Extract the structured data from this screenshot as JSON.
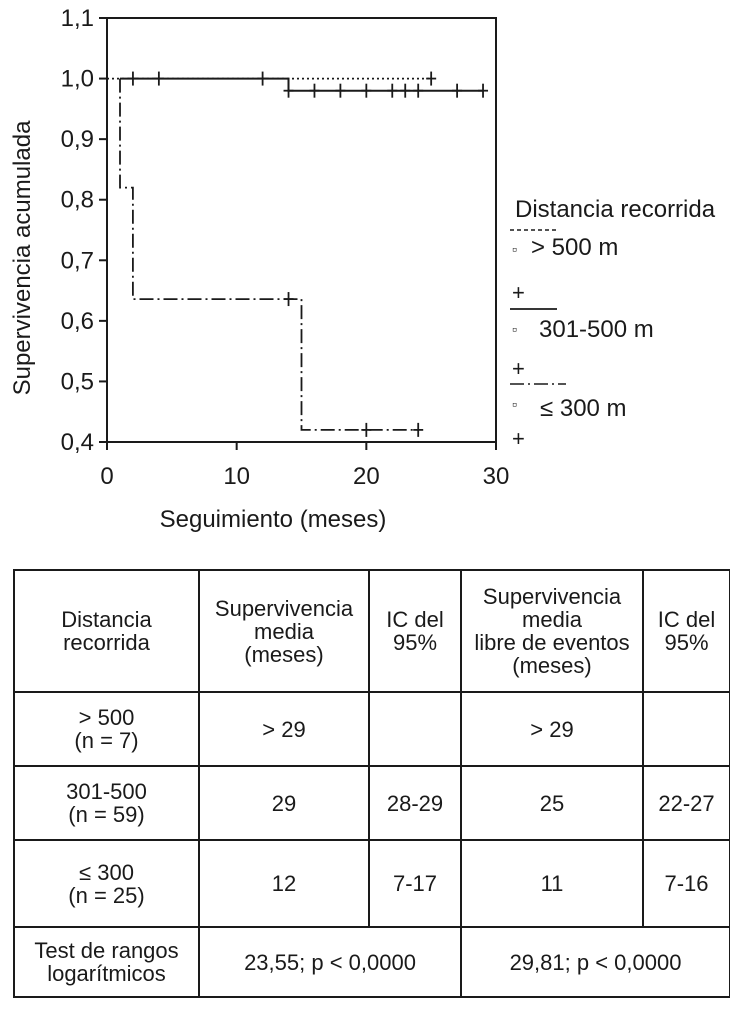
{
  "chart_data": {
    "type": "line",
    "subtype": "kaplan-meier step curve",
    "xlabel": "Seguimiento (meses)",
    "ylabel": "Supervivencia acumulada",
    "xlim": [
      0,
      30
    ],
    "ylim": [
      0.4,
      1.1
    ],
    "x_ticks": [
      "0",
      "10",
      "20",
      "30"
    ],
    "y_ticks": [
      "0,4",
      "0,5",
      "0,6",
      "0,7",
      "0,8",
      "0,9",
      "1,0",
      "1,1"
    ],
    "legend_title": "Distancia recorrida",
    "legend_position": "right",
    "series": [
      {
        "name": "> 500 m",
        "style": "dotted",
        "steps": [
          [
            0,
            1.0
          ],
          [
            25,
            1.0
          ]
        ],
        "censored": [
          [
            25,
            1.0
          ]
        ]
      },
      {
        "name": "301-500 m",
        "style": "solid",
        "steps": [
          [
            1,
            1.0
          ],
          [
            14,
            1.0
          ],
          [
            14,
            0.98
          ],
          [
            29,
            0.98
          ]
        ],
        "censored": [
          [
            2,
            1.0
          ],
          [
            4,
            1.0
          ],
          [
            12,
            1.0
          ],
          [
            14,
            0.98
          ],
          [
            16,
            0.98
          ],
          [
            18,
            0.98
          ],
          [
            20,
            0.98
          ],
          [
            22,
            0.98
          ],
          [
            23,
            0.98
          ],
          [
            24,
            0.98
          ],
          [
            27,
            0.98
          ],
          [
            29,
            0.98
          ]
        ]
      },
      {
        "name": "≤ 300 m",
        "style": "dash-dot",
        "steps": [
          [
            1,
            1.0
          ],
          [
            1,
            0.82
          ],
          [
            2,
            0.82
          ],
          [
            2,
            0.636
          ],
          [
            15,
            0.636
          ],
          [
            15,
            0.42
          ],
          [
            24,
            0.42
          ]
        ],
        "censored": [
          [
            14,
            0.636
          ],
          [
            20,
            0.42
          ],
          [
            24,
            0.42
          ]
        ]
      }
    ]
  },
  "legend": {
    "title": "Distancia recorrida",
    "entries": [
      {
        "label": "> 500 m",
        "marker_square": "▫",
        "censor_mark": "+"
      },
      {
        "label": "301-500 m",
        "marker_square": "▫",
        "censor_mark": "+"
      },
      {
        "label": "≤ 300 m",
        "marker_square": "▫",
        "censor_mark": "+"
      }
    ]
  },
  "table": {
    "headers": [
      [
        "Distancia",
        "recorrida"
      ],
      [
        "Supervivencia",
        "media",
        "(meses)"
      ],
      [
        "IC del",
        "95%"
      ],
      [
        "Supervivencia",
        "media",
        "libre de eventos",
        "(meses)"
      ],
      [
        "IC del",
        "95%"
      ]
    ],
    "rows": [
      {
        "group": [
          "> 500",
          "(n = 7)"
        ],
        "surv": "> 29",
        "ci1": "",
        "efs": "> 29",
        "ci2": ""
      },
      {
        "group": [
          "301-500",
          "(n = 59)"
        ],
        "surv": "29",
        "ci1": "28-29",
        "efs": "25",
        "ci2": "22-27"
      },
      {
        "group": [
          "≤ 300",
          "(n = 25)"
        ],
        "surv": "12",
        "ci1": "7-17",
        "efs": "11",
        "ci2": "7-16"
      }
    ],
    "logrank": {
      "label": [
        "Test de rangos",
        "logarítmicos"
      ],
      "value1": "23,55; p < 0,0000",
      "value2": "29,81; p < 0,0000"
    }
  }
}
